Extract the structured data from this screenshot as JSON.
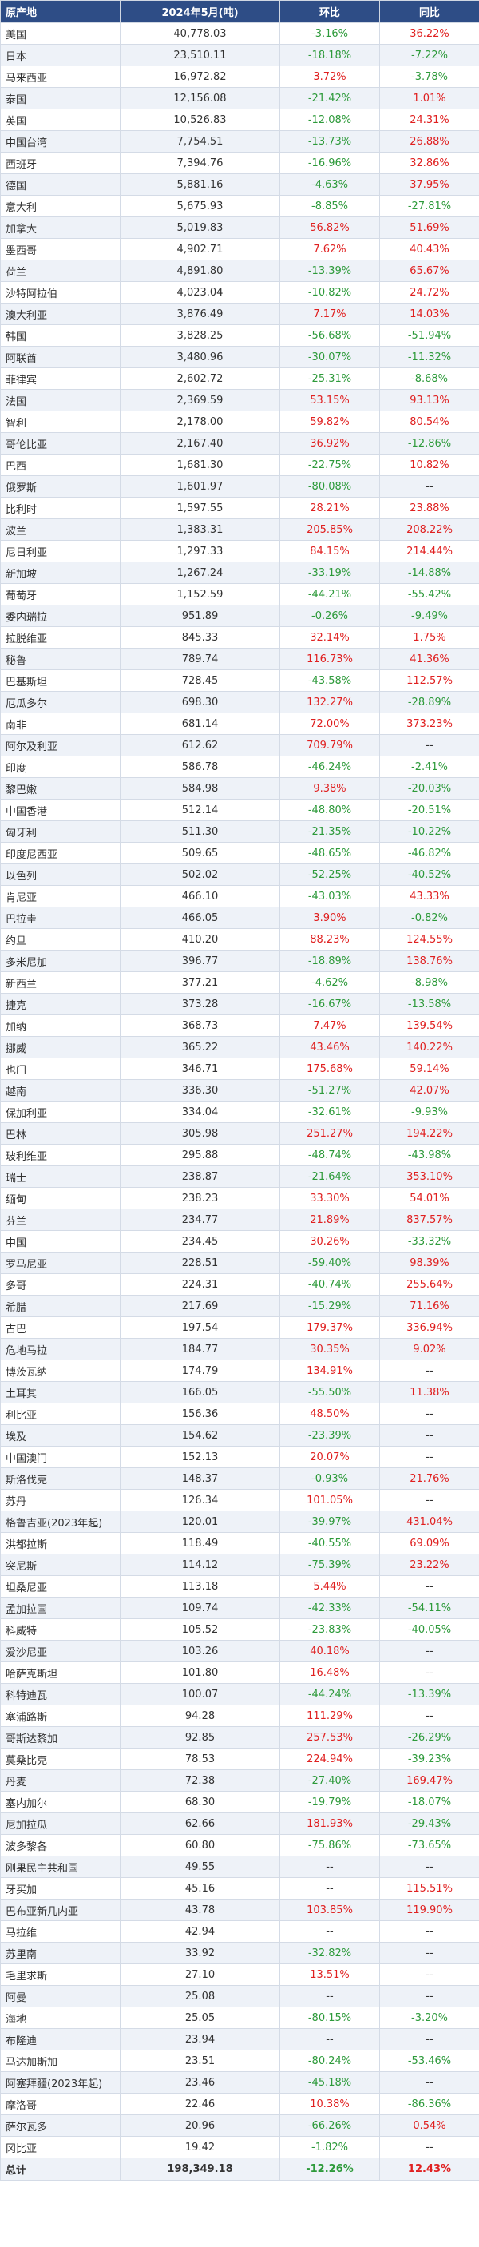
{
  "header": {
    "col_origin": "原产地",
    "col_value": "2024年5月(吨)",
    "col_mom": "环比",
    "col_yoy": "同比"
  },
  "rows": [
    {
      "origin": "美国",
      "value": "40,778.03",
      "mom": "-3.16%",
      "yoy": "36.22%"
    },
    {
      "origin": "日本",
      "value": "23,510.11",
      "mom": "-18.18%",
      "yoy": "-7.22%"
    },
    {
      "origin": "马来西亚",
      "value": "16,972.82",
      "mom": "3.72%",
      "yoy": "-3.78%"
    },
    {
      "origin": "泰国",
      "value": "12,156.08",
      "mom": "-21.42%",
      "yoy": "1.01%"
    },
    {
      "origin": "英国",
      "value": "10,526.83",
      "mom": "-12.08%",
      "yoy": "24.31%"
    },
    {
      "origin": "中国台湾",
      "value": "7,754.51",
      "mom": "-13.73%",
      "yoy": "26.88%"
    },
    {
      "origin": "西班牙",
      "value": "7,394.76",
      "mom": "-16.96%",
      "yoy": "32.86%"
    },
    {
      "origin": "德国",
      "value": "5,881.16",
      "mom": "-4.63%",
      "yoy": "37.95%"
    },
    {
      "origin": "意大利",
      "value": "5,675.93",
      "mom": "-8.85%",
      "yoy": "-27.81%"
    },
    {
      "origin": "加拿大",
      "value": "5,019.83",
      "mom": "56.82%",
      "yoy": "51.69%"
    },
    {
      "origin": "墨西哥",
      "value": "4,902.71",
      "mom": "7.62%",
      "yoy": "40.43%"
    },
    {
      "origin": "荷兰",
      "value": "4,891.80",
      "mom": "-13.39%",
      "yoy": "65.67%"
    },
    {
      "origin": "沙特阿拉伯",
      "value": "4,023.04",
      "mom": "-10.82%",
      "yoy": "24.72%"
    },
    {
      "origin": "澳大利亚",
      "value": "3,876.49",
      "mom": "7.17%",
      "yoy": "14.03%"
    },
    {
      "origin": "韩国",
      "value": "3,828.25",
      "mom": "-56.68%",
      "yoy": "-51.94%"
    },
    {
      "origin": "阿联酋",
      "value": "3,480.96",
      "mom": "-30.07%",
      "yoy": "-11.32%"
    },
    {
      "origin": "菲律宾",
      "value": "2,602.72",
      "mom": "-25.31%",
      "yoy": "-8.68%"
    },
    {
      "origin": "法国",
      "value": "2,369.59",
      "mom": "53.15%",
      "yoy": "93.13%"
    },
    {
      "origin": "智利",
      "value": "2,178.00",
      "mom": "59.82%",
      "yoy": "80.54%"
    },
    {
      "origin": "哥伦比亚",
      "value": "2,167.40",
      "mom": "36.92%",
      "yoy": "-12.86%"
    },
    {
      "origin": "巴西",
      "value": "1,681.30",
      "mom": "-22.75%",
      "yoy": "10.82%"
    },
    {
      "origin": "俄罗斯",
      "value": "1,601.97",
      "mom": "-80.08%",
      "yoy": "--"
    },
    {
      "origin": "比利时",
      "value": "1,597.55",
      "mom": "28.21%",
      "yoy": "23.88%"
    },
    {
      "origin": "波兰",
      "value": "1,383.31",
      "mom": "205.85%",
      "yoy": "208.22%"
    },
    {
      "origin": "尼日利亚",
      "value": "1,297.33",
      "mom": "84.15%",
      "yoy": "214.44%"
    },
    {
      "origin": "新加坡",
      "value": "1,267.24",
      "mom": "-33.19%",
      "yoy": "-14.88%"
    },
    {
      "origin": "葡萄牙",
      "value": "1,152.59",
      "mom": "-44.21%",
      "yoy": "-55.42%"
    },
    {
      "origin": "委内瑞拉",
      "value": "951.89",
      "mom": "-0.26%",
      "yoy": "-9.49%"
    },
    {
      "origin": "拉脱维亚",
      "value": "845.33",
      "mom": "32.14%",
      "yoy": "1.75%"
    },
    {
      "origin": "秘鲁",
      "value": "789.74",
      "mom": "116.73%",
      "yoy": "41.36%"
    },
    {
      "origin": "巴基斯坦",
      "value": "728.45",
      "mom": "-43.58%",
      "yoy": "112.57%"
    },
    {
      "origin": "厄瓜多尔",
      "value": "698.30",
      "mom": "132.27%",
      "yoy": "-28.89%"
    },
    {
      "origin": "南非",
      "value": "681.14",
      "mom": "72.00%",
      "yoy": "373.23%"
    },
    {
      "origin": "阿尔及利亚",
      "value": "612.62",
      "mom": "709.79%",
      "yoy": "--"
    },
    {
      "origin": "印度",
      "value": "586.78",
      "mom": "-46.24%",
      "yoy": "-2.41%"
    },
    {
      "origin": "黎巴嫩",
      "value": "584.98",
      "mom": "9.38%",
      "yoy": "-20.03%"
    },
    {
      "origin": "中国香港",
      "value": "512.14",
      "mom": "-48.80%",
      "yoy": "-20.51%"
    },
    {
      "origin": "匈牙利",
      "value": "511.30",
      "mom": "-21.35%",
      "yoy": "-10.22%"
    },
    {
      "origin": "印度尼西亚",
      "value": "509.65",
      "mom": "-48.65%",
      "yoy": "-46.82%"
    },
    {
      "origin": "以色列",
      "value": "502.02",
      "mom": "-52.25%",
      "yoy": "-40.52%"
    },
    {
      "origin": "肯尼亚",
      "value": "466.10",
      "mom": "-43.03%",
      "yoy": "43.33%"
    },
    {
      "origin": "巴拉圭",
      "value": "466.05",
      "mom": "3.90%",
      "yoy": "-0.82%"
    },
    {
      "origin": "约旦",
      "value": "410.20",
      "mom": "88.23%",
      "yoy": "124.55%"
    },
    {
      "origin": "多米尼加",
      "value": "396.77",
      "mom": "-18.89%",
      "yoy": "138.76%"
    },
    {
      "origin": "新西兰",
      "value": "377.21",
      "mom": "-4.62%",
      "yoy": "-8.98%"
    },
    {
      "origin": "捷克",
      "value": "373.28",
      "mom": "-16.67%",
      "yoy": "-13.58%"
    },
    {
      "origin": "加纳",
      "value": "368.73",
      "mom": "7.47%",
      "yoy": "139.54%"
    },
    {
      "origin": "挪威",
      "value": "365.22",
      "mom": "43.46%",
      "yoy": "140.22%"
    },
    {
      "origin": "也门",
      "value": "346.71",
      "mom": "175.68%",
      "yoy": "59.14%"
    },
    {
      "origin": "越南",
      "value": "336.30",
      "mom": "-51.27%",
      "yoy": "42.07%"
    },
    {
      "origin": "保加利亚",
      "value": "334.04",
      "mom": "-32.61%",
      "yoy": "-9.93%"
    },
    {
      "origin": "巴林",
      "value": "305.98",
      "mom": "251.27%",
      "yoy": "194.22%"
    },
    {
      "origin": "玻利维亚",
      "value": "295.88",
      "mom": "-48.74%",
      "yoy": "-43.98%"
    },
    {
      "origin": "瑞士",
      "value": "238.87",
      "mom": "-21.64%",
      "yoy": "353.10%"
    },
    {
      "origin": "缅甸",
      "value": "238.23",
      "mom": "33.30%",
      "yoy": "54.01%"
    },
    {
      "origin": "芬兰",
      "value": "234.77",
      "mom": "21.89%",
      "yoy": "837.57%"
    },
    {
      "origin": "中国",
      "value": "234.45",
      "mom": "30.26%",
      "yoy": "-33.32%"
    },
    {
      "origin": "罗马尼亚",
      "value": "228.51",
      "mom": "-59.40%",
      "yoy": "98.39%"
    },
    {
      "origin": "多哥",
      "value": "224.31",
      "mom": "-40.74%",
      "yoy": "255.64%"
    },
    {
      "origin": "希腊",
      "value": "217.69",
      "mom": "-15.29%",
      "yoy": "71.16%"
    },
    {
      "origin": "古巴",
      "value": "197.54",
      "mom": "179.37%",
      "yoy": "336.94%"
    },
    {
      "origin": "危地马拉",
      "value": "184.77",
      "mom": "30.35%",
      "yoy": "9.02%"
    },
    {
      "origin": "博茨瓦纳",
      "value": "174.79",
      "mom": "134.91%",
      "yoy": "--"
    },
    {
      "origin": "土耳其",
      "value": "166.05",
      "mom": "-55.50%",
      "yoy": "11.38%"
    },
    {
      "origin": "利比亚",
      "value": "156.36",
      "mom": "48.50%",
      "yoy": "--"
    },
    {
      "origin": "埃及",
      "value": "154.62",
      "mom": "-23.39%",
      "yoy": "--"
    },
    {
      "origin": "中国澳门",
      "value": "152.13",
      "mom": "20.07%",
      "yoy": "--"
    },
    {
      "origin": "斯洛伐克",
      "value": "148.37",
      "mom": "-0.93%",
      "yoy": "21.76%"
    },
    {
      "origin": "苏丹",
      "value": "126.34",
      "mom": "101.05%",
      "yoy": "--"
    },
    {
      "origin": "格鲁吉亚(2023年起)",
      "value": "120.01",
      "mom": "-39.97%",
      "yoy": "431.04%"
    },
    {
      "origin": "洪都拉斯",
      "value": "118.49",
      "mom": "-40.55%",
      "yoy": "69.09%"
    },
    {
      "origin": "突尼斯",
      "value": "114.12",
      "mom": "-75.39%",
      "yoy": "23.22%"
    },
    {
      "origin": "坦桑尼亚",
      "value": "113.18",
      "mom": "5.44%",
      "yoy": "--"
    },
    {
      "origin": "孟加拉国",
      "value": "109.74",
      "mom": "-42.33%",
      "yoy": "-54.11%"
    },
    {
      "origin": "科威特",
      "value": "105.52",
      "mom": "-23.83%",
      "yoy": "-40.05%"
    },
    {
      "origin": "爱沙尼亚",
      "value": "103.26",
      "mom": "40.18%",
      "yoy": "--"
    },
    {
      "origin": "哈萨克斯坦",
      "value": "101.80",
      "mom": "16.48%",
      "yoy": "--"
    },
    {
      "origin": "科特迪瓦",
      "value": "100.07",
      "mom": "-44.24%",
      "yoy": "-13.39%"
    },
    {
      "origin": "塞浦路斯",
      "value": "94.28",
      "mom": "111.29%",
      "yoy": "--"
    },
    {
      "origin": "哥斯达黎加",
      "value": "92.85",
      "mom": "257.53%",
      "yoy": "-26.29%"
    },
    {
      "origin": "莫桑比克",
      "value": "78.53",
      "mom": "224.94%",
      "yoy": "-39.23%"
    },
    {
      "origin": "丹麦",
      "value": "72.38",
      "mom": "-27.40%",
      "yoy": "169.47%"
    },
    {
      "origin": "塞内加尔",
      "value": "68.30",
      "mom": "-19.79%",
      "yoy": "-18.07%"
    },
    {
      "origin": "尼加拉瓜",
      "value": "62.66",
      "mom": "181.93%",
      "yoy": "-29.43%"
    },
    {
      "origin": "波多黎各",
      "value": "60.80",
      "mom": "-75.86%",
      "yoy": "-73.65%"
    },
    {
      "origin": "刚果民主共和国",
      "value": "49.55",
      "mom": "--",
      "yoy": "--"
    },
    {
      "origin": "牙买加",
      "value": "45.16",
      "mom": "--",
      "yoy": "115.51%"
    },
    {
      "origin": "巴布亚新几内亚",
      "value": "43.78",
      "mom": "103.85%",
      "yoy": "119.90%"
    },
    {
      "origin": "马拉维",
      "value": "42.94",
      "mom": "--",
      "yoy": "--"
    },
    {
      "origin": "苏里南",
      "value": "33.92",
      "mom": "-32.82%",
      "yoy": "--"
    },
    {
      "origin": "毛里求斯",
      "value": "27.10",
      "mom": "13.51%",
      "yoy": "--"
    },
    {
      "origin": "阿曼",
      "value": "25.08",
      "mom": "--",
      "yoy": "--"
    },
    {
      "origin": "海地",
      "value": "25.05",
      "mom": "-80.15%",
      "yoy": "-3.20%"
    },
    {
      "origin": "布隆迪",
      "value": "23.94",
      "mom": "--",
      "yoy": "--"
    },
    {
      "origin": "马达加斯加",
      "value": "23.51",
      "mom": "-80.24%",
      "yoy": "-53.46%"
    },
    {
      "origin": "阿塞拜疆(2023年起)",
      "value": "23.46",
      "mom": "-45.18%",
      "yoy": "--"
    },
    {
      "origin": "摩洛哥",
      "value": "22.46",
      "mom": "10.38%",
      "yoy": "-86.36%"
    },
    {
      "origin": "萨尔瓦多",
      "value": "20.96",
      "mom": "-66.26%",
      "yoy": "0.54%"
    },
    {
      "origin": "冈比亚",
      "value": "19.42",
      "mom": "-1.82%",
      "yoy": "--"
    }
  ],
  "total": {
    "origin": "总计",
    "value": "198,349.18",
    "mom": "-12.26%",
    "yoy": "12.43%"
  },
  "colors": {
    "header_bg": "#2e4d86",
    "positive": "#e02020",
    "negative": "#2d9a3a",
    "stripe": "#eef2f8"
  }
}
